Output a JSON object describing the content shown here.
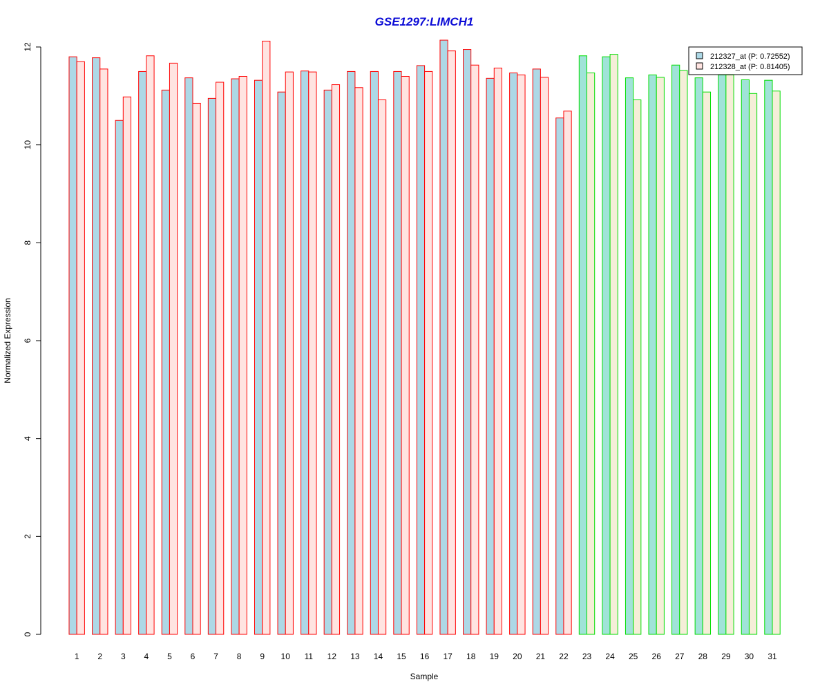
{
  "chart_data": {
    "type": "bar",
    "title": "GSE1297:LIMCH1",
    "xlabel": "Sample",
    "ylabel": "Normalized Expression",
    "ylim": [
      0,
      12
    ],
    "yticks": [
      0,
      2,
      4,
      6,
      8,
      10,
      12
    ],
    "grid": false,
    "legend_placement": "top-right",
    "categories": [
      "1",
      "2",
      "3",
      "4",
      "5",
      "6",
      "7",
      "8",
      "9",
      "10",
      "11",
      "12",
      "13",
      "14",
      "15",
      "16",
      "17",
      "18",
      "19",
      "20",
      "21",
      "22",
      "23",
      "24",
      "25",
      "26",
      "27",
      "28",
      "29",
      "30",
      "31"
    ],
    "series": [
      {
        "name": "212327_at (P: 0.72552)",
        "fill": "#add8e6",
        "values": [
          11.8,
          11.78,
          10.5,
          11.5,
          11.12,
          11.37,
          10.95,
          11.35,
          11.32,
          11.08,
          11.51,
          11.12,
          11.5,
          11.5,
          11.5,
          11.62,
          12.14,
          11.95,
          11.36,
          11.47,
          11.55,
          10.55,
          11.82,
          11.8,
          11.37,
          11.43,
          11.63,
          11.37,
          11.43,
          11.33,
          11.32
        ]
      },
      {
        "name": "212328_at (P: 0.81405)",
        "fill": "#ffe4e1",
        "values": [
          11.7,
          11.55,
          10.98,
          11.82,
          11.67,
          10.85,
          11.28,
          11.4,
          12.12,
          11.49,
          11.49,
          11.23,
          11.17,
          10.92,
          11.4,
          11.5,
          11.92,
          11.63,
          11.57,
          11.43,
          11.38,
          10.69,
          11.47,
          11.85,
          10.92,
          11.38,
          11.52,
          11.08,
          11.43,
          11.05,
          11.1
        ]
      }
    ],
    "group_colors": {
      "group1_border": "#ff0000",
      "group2_border": "#00dd00",
      "group2_series1_fill": "#a0e3d8",
      "group2_series2_fill": "#f5eed8"
    },
    "group1_count": 22
  }
}
